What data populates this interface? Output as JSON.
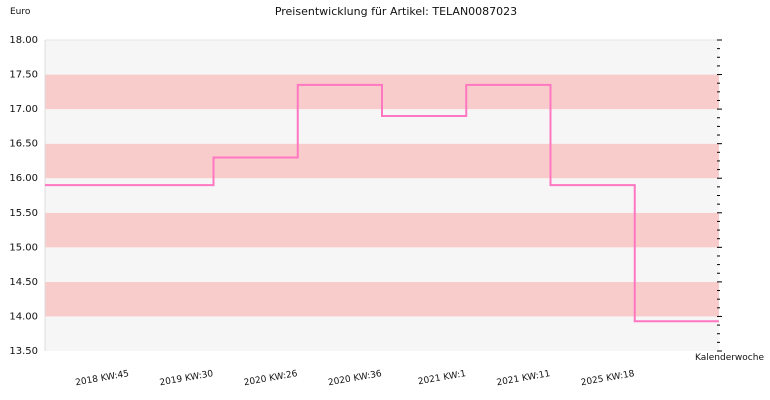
{
  "chart_data": {
    "type": "line",
    "title": "Preisentwicklung für Artikel: TELAN0087023",
    "ylabel": "Euro",
    "xlabel": "Kalenderwoche",
    "ylim": [
      13.5,
      18.0
    ],
    "yticks": [
      "13.50",
      "14.00",
      "14.50",
      "15.00",
      "15.50",
      "16.00",
      "16.50",
      "17.00",
      "17.50",
      "18.00"
    ],
    "line_style": "step",
    "grid": "alternating horizontal bands",
    "colors": {
      "line": "#ff77c0",
      "band": "#f9cccc",
      "band_alt": "#f6f6f6"
    },
    "categories": [
      "2018 KW:45",
      "2019 KW:30",
      "2020 KW:26",
      "2020 KW:36",
      "2021 KW:1",
      "2021 KW:11",
      "2025 KW:18"
    ],
    "values": [
      15.9,
      16.3,
      17.35,
      16.9,
      17.35,
      15.9,
      13.93
    ]
  }
}
